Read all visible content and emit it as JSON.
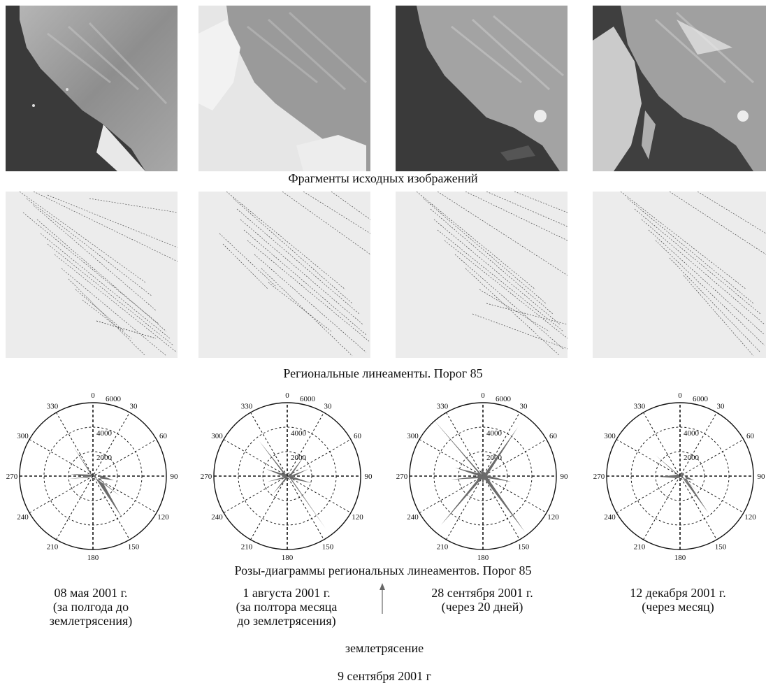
{
  "captions": {
    "source_images": "Фрагменты исходных изображений",
    "lineaments": "Региональные линеаменты. Порог 85",
    "roses": "Розы-диаграммы региональных линеаментов. Порог 85"
  },
  "rose_axis_labels": {
    "angles": [
      "0",
      "30",
      "60",
      "90",
      "120",
      "150",
      "180",
      "210",
      "240",
      "270",
      "300",
      "330"
    ],
    "radii": [
      "2000",
      "4000",
      "6000"
    ]
  },
  "dates": [
    "08 мая 2001 г.\n(за полгода до\nземлетрясения)",
    "1 августа 2001 г.\n(за полтора месяца\nдо землетрясения)",
    "28 сентября 2001 г.\n(через 20 дней)",
    "12 декабря 2001 г.\n(через месяц)"
  ],
  "earthquake": {
    "line1": "землетрясение",
    "line2": "9 сентября 2001 г"
  },
  "colors": {
    "ocean": "#3a3a3a",
    "land": "#9a9a9a",
    "cloud": "#ececec",
    "petal": "#6b6b6b"
  }
}
